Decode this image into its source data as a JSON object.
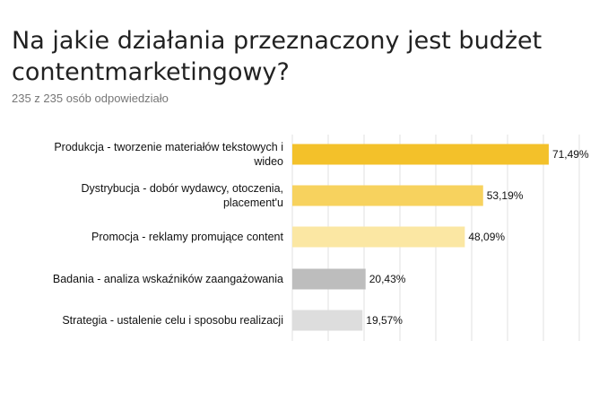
{
  "header": {
    "title": "Na jakie działania przeznaczony jest budżet contentmarketingowy?",
    "responses": "235 z 235 osób odpowiedziało"
  },
  "chart_data": {
    "type": "bar",
    "orientation": "horizontal",
    "title": "Na jakie działania przeznaczony jest budżet contentmarketingowy?",
    "subtitle": "235 z 235 osób odpowiedziało",
    "xlim": [
      0,
      80
    ],
    "grid": true,
    "categories": [
      [
        "Produkcja - tworzenie materiałów  tekstowych i",
        "wideo"
      ],
      [
        "Dystrybucja - dobór wydawcy, otoczenia,",
        "placement'u"
      ],
      [
        "Promocja - reklamy promujące content"
      ],
      [
        "Badania - analiza wskaźników zaangażowania"
      ],
      [
        "Strategia - ustalenie celu i sposobu realizacji"
      ]
    ],
    "values": [
      71.49,
      53.19,
      48.09,
      20.43,
      19.57
    ],
    "value_labels": [
      "71,49%",
      "53,19%",
      "48,09%",
      "20,43%",
      "19,57%"
    ],
    "colors": [
      "#f3c12a",
      "#f7d25e",
      "#fbe7a3",
      "#bdbdbd",
      "#dddddd"
    ]
  }
}
